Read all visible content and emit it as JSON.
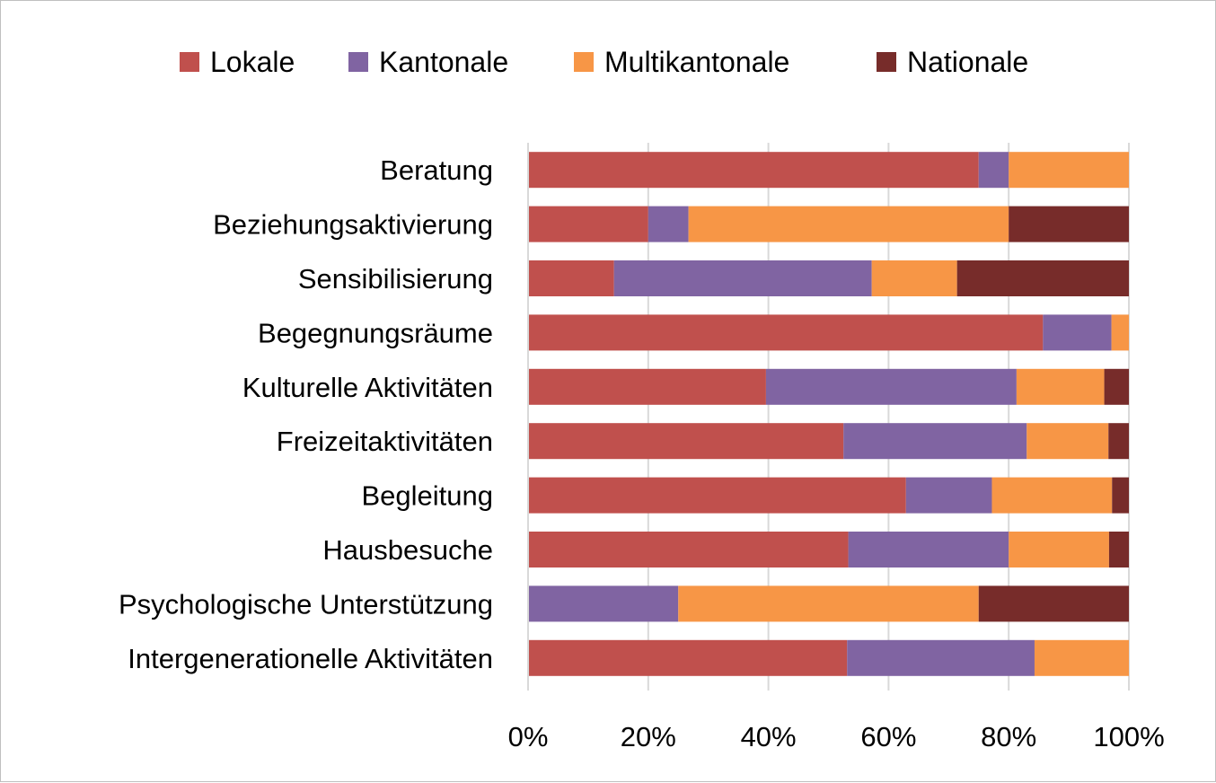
{
  "chart_data": {
    "type": "bar",
    "orientation": "horizontal",
    "stacked": "percent",
    "title": "",
    "xlabel": "",
    "ylabel": "",
    "xlim": [
      0,
      100
    ],
    "x_ticks": [
      "0%",
      "20%",
      "40%",
      "60%",
      "80%",
      "100%"
    ],
    "grid": true,
    "legend_position": "top",
    "categories": [
      "Beratung",
      "Beziehungsaktivierung",
      "Sensibilisierung",
      "Begegnungsräume",
      "Kulturelle Aktivitäten",
      "Freizeitaktivitäten",
      "Begleitung",
      "Hausbesuche",
      "Psychologische Unterstützung",
      "Intergenerationelle Aktivitäten"
    ],
    "series": [
      {
        "name": "Lokale",
        "color": "#c0504d",
        "values": [
          75,
          20,
          14.3,
          85.7,
          39.6,
          52.5,
          62.9,
          53.3,
          0,
          53.1
        ]
      },
      {
        "name": "Kantonale",
        "color": "#8064a2",
        "values": [
          5,
          6.7,
          42.9,
          11.4,
          41.7,
          30.5,
          14.3,
          26.7,
          25,
          31.2
        ]
      },
      {
        "name": "Multikantonale",
        "color": "#f79646",
        "values": [
          20,
          53.3,
          14.2,
          2.9,
          14.6,
          13.6,
          20,
          16.7,
          50,
          15.7
        ]
      },
      {
        "name": "Nationale",
        "color": "#772c2a",
        "values": [
          0,
          20,
          28.6,
          0,
          4.1,
          3.4,
          2.8,
          3.3,
          25,
          0
        ]
      }
    ]
  }
}
